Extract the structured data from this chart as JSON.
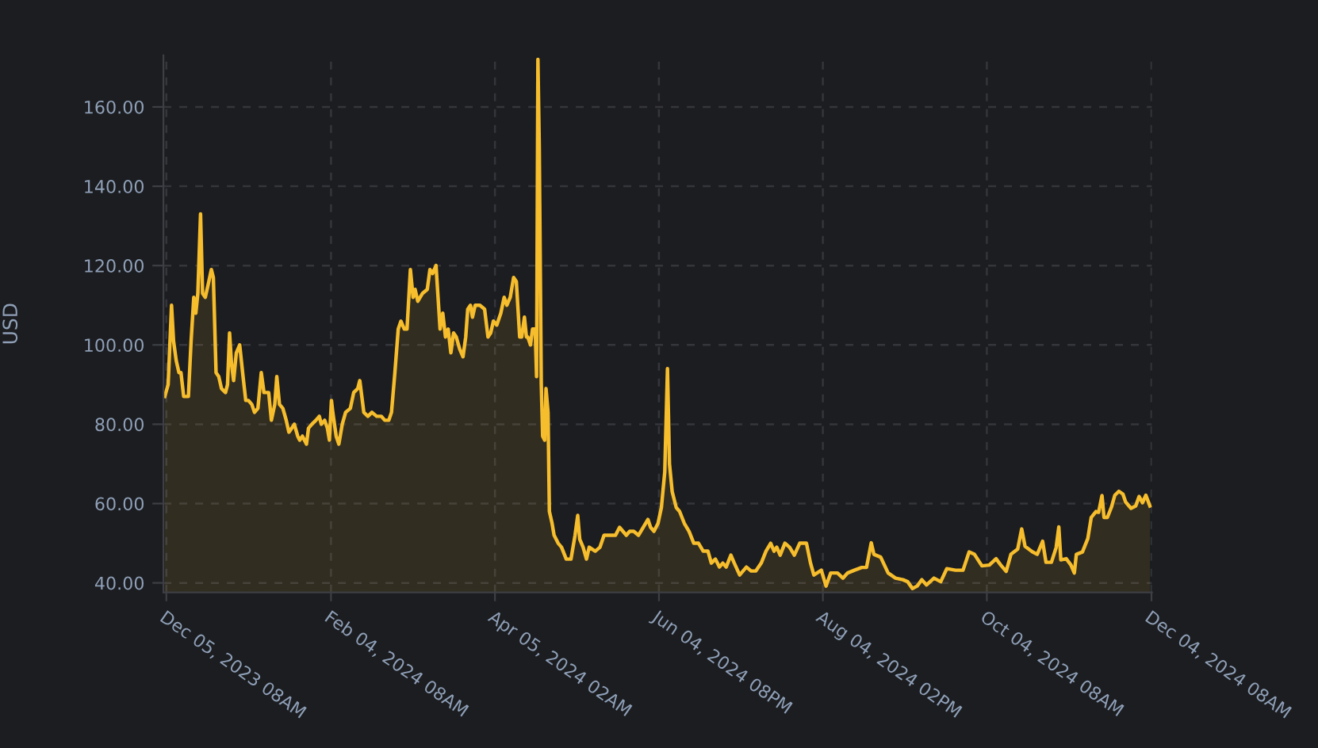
{
  "chart_data": {
    "type": "area",
    "ylabel": "USD",
    "x": [
      "2023-12-04T18:00",
      "2023-12-06T00:00",
      "2023-12-07T06:00",
      "2023-12-08T00:00",
      "2023-12-09T00:00",
      "2023-12-10T00:00",
      "2023-12-10T18:00",
      "2023-12-11T18:00",
      "2023-12-13T12:00",
      "2023-12-14T12:00",
      "2023-12-15T12:00",
      "2023-12-16T06:00",
      "2023-12-17T00:00",
      "2023-12-18T00:00",
      "2023-12-18T18:00",
      "2023-12-19T18:00",
      "2023-12-20T18:00",
      "2023-12-22T00:00",
      "2023-12-22T18:00",
      "2023-12-23T18:00",
      "2023-12-24T18:00",
      "2023-12-25T18:00",
      "2023-12-27T06:00",
      "2023-12-28T00:00",
      "2023-12-28T18:00",
      "2023-12-29T12:00",
      "2023-12-30T06:00",
      "2023-12-31T06:00",
      "2024-01-01T12:00",
      "2024-01-02T18:00",
      "2024-01-03T18:00",
      "2024-01-04T18:00",
      "2024-01-06T00:00",
      "2024-01-07T00:00",
      "2024-01-08T06:00",
      "2024-01-09T12:00",
      "2024-01-10T12:00",
      "2024-01-12T06:00",
      "2024-01-13T06:00",
      "2024-01-14T12:00",
      "2024-01-15T06:00",
      "2024-01-16T06:00",
      "2024-01-17T12:00",
      "2024-01-18T18:00",
      "2024-01-19T18:00",
      "2024-01-20T18:00",
      "2024-01-21T18:00",
      "2024-01-23T00:00",
      "2024-01-23T18:00",
      "2024-01-24T18:00",
      "2024-01-26T06:00",
      "2024-01-27T00:00",
      "2024-01-28T06:00",
      "2024-01-29T18:00",
      "2024-01-31T00:00",
      "2024-01-31T18:00",
      "2024-02-02T00:00",
      "2024-02-03T00:00",
      "2024-02-03T18:00",
      "2024-02-04T12:00",
      "2024-02-05T00:00",
      "2024-02-06T06:00",
      "2024-02-07T06:00",
      "2024-02-08T12:00",
      "2024-02-09T18:00",
      "2024-02-11T12:00",
      "2024-02-12T18:00",
      "2024-02-14T06:00",
      "2024-02-15T00:00",
      "2024-02-16T12:00",
      "2024-02-18T00:00",
      "2024-02-19T12:00",
      "2024-02-21T06:00",
      "2024-02-23T00:00",
      "2024-02-24T06:00",
      "2024-02-25T18:00",
      "2024-02-26T18:00",
      "2024-02-28T00:00",
      "2024-02-29T06:00",
      "2024-03-01T06:00",
      "2024-03-02T12:00",
      "2024-03-03T12:00",
      "2024-03-04T18:00",
      "2024-03-05T18:00",
      "2024-03-06T12:00",
      "2024-03-07T12:00",
      "2024-03-09T06:00",
      "2024-03-11T00:00",
      "2024-03-12T00:00",
      "2024-03-13T00:00",
      "2024-03-14T06:00",
      "2024-03-15T00:00",
      "2024-03-15T18:00",
      "2024-03-16T18:00",
      "2024-03-17T18:00",
      "2024-03-18T18:00",
      "2024-03-19T18:00",
      "2024-03-20T18:00",
      "2024-03-21T18:00",
      "2024-03-23T00:00",
      "2024-03-24T06:00",
      "2024-03-25T06:00",
      "2024-03-26T00:00",
      "2024-03-27T00:00",
      "2024-03-27T18:00",
      "2024-03-28T18:00",
      "2024-03-30T12:00",
      "2024-04-01T06:00",
      "2024-04-02T12:00",
      "2024-04-03T12:00",
      "2024-04-04T12:00",
      "2024-04-05T18:00",
      "2024-04-07T06:00",
      "2024-04-08T12:00",
      "2024-04-09T12:00",
      "2024-04-10T18:00",
      "2024-04-12T00:00",
      "2024-04-13T00:00",
      "2024-04-14T06:00",
      "2024-04-15T00:00",
      "2024-04-16T00:00",
      "2024-04-16T18:00",
      "2024-04-17T06:00",
      "2024-04-18T06:00",
      "2024-04-19T00:00",
      "2024-04-20T00:00",
      "2024-04-20T12:00",
      "2024-04-21T00:00",
      "2024-04-21T12:00",
      "2024-04-22T06:00",
      "2024-04-22T18:00",
      "2024-04-23T12:00",
      "2024-04-24T00:00",
      "2024-04-24T18:00",
      "2024-04-25T06:00",
      "2024-04-26T06:00",
      "2024-04-27T00:00",
      "2024-04-28T12:00",
      "2024-04-29T18:00",
      "2024-05-01T12:00",
      "2024-05-03T06:00",
      "2024-05-04T18:00",
      "2024-05-05T18:00",
      "2024-05-06T12:00",
      "2024-05-07T18:00",
      "2024-05-09T00:00",
      "2024-05-10T00:00",
      "2024-05-12T06:00",
      "2024-05-14T00:00",
      "2024-05-15T12:00",
      "2024-05-17T12:00",
      "2024-05-19T18:00",
      "2024-05-21T06:00",
      "2024-05-22T12:00",
      "2024-05-23T18:00",
      "2024-05-25T00:00",
      "2024-05-26T12:00",
      "2024-05-28T06:00",
      "2024-05-30T00:00",
      "2024-05-31T18:00",
      "2024-06-01T18:00",
      "2024-06-03T00:00",
      "2024-06-04T12:00",
      "2024-06-05T18:00",
      "2024-06-07T00:00",
      "2024-06-08T00:00",
      "2024-06-08T18:00",
      "2024-06-09T18:00",
      "2024-06-11T06:00",
      "2024-06-12T12:00",
      "2024-06-14T06:00",
      "2024-06-16T00:00",
      "2024-06-17T18:00",
      "2024-06-19T12:00",
      "2024-06-21T06:00",
      "2024-06-23T00:00",
      "2024-06-24T06:00",
      "2024-06-25T18:00",
      "2024-06-27T06:00",
      "2024-06-28T12:00",
      "2024-06-29T18:00",
      "2024-07-01T12:00",
      "2024-07-02T18:00",
      "2024-07-04T18:00",
      "2024-07-06T00:00",
      "2024-07-07T06:00",
      "2024-07-09T00:00",
      "2024-07-10T18:00",
      "2024-07-12T18:00",
      "2024-07-14T12:00",
      "2024-07-16T06:00",
      "2024-07-17T12:00",
      "2024-07-18T12:00",
      "2024-07-19T18:00",
      "2024-07-21T12:00",
      "2024-07-23T06:00",
      "2024-07-25T00:00",
      "2024-07-27T00:00",
      "2024-07-29T12:00",
      "2024-07-31T00:00",
      "2024-08-01T06:00",
      "2024-08-04T00:00",
      "2024-08-05T18:00",
      "2024-08-07T12:00",
      "2024-08-10T00:00",
      "2024-08-12T00:00",
      "2024-08-13T18:00",
      "2024-08-16T06:00",
      "2024-08-19T00:00",
      "2024-08-20T18:00",
      "2024-08-22T12:00",
      "2024-08-23T12:00",
      "2024-08-26T00:00",
      "2024-08-28T18:00",
      "2024-08-31T12:00",
      "2024-09-03T06:00",
      "2024-09-05T00:00",
      "2024-09-06T18:00",
      "2024-09-08T12:00",
      "2024-09-10T06:00",
      "2024-09-12T00:00",
      "2024-09-14T18:00",
      "2024-09-17T06:00",
      "2024-09-19T12:00",
      "2024-09-22T18:00",
      "2024-09-25T12:00",
      "2024-09-27T18:00",
      "2024-09-29T18:00",
      "2024-10-02T12:00",
      "2024-10-05T06:00",
      "2024-10-07T18:00",
      "2024-10-09T12:00",
      "2024-10-11T12:00",
      "2024-10-13T06:00",
      "2024-10-15T18:00",
      "2024-10-17T06:00",
      "2024-10-18T12:00",
      "2024-10-21T06:00",
      "2024-10-23T00:00",
      "2024-10-25T00:00",
      "2024-10-26T06:00",
      "2024-10-28T06:00",
      "2024-10-30T00:00",
      "2024-10-31T00:00",
      "2024-10-31T18:00",
      "2024-11-02T18:00",
      "2024-11-04T12:00",
      "2024-11-05T18:00",
      "2024-11-06T12:00",
      "2024-11-08T18:00",
      "2024-11-10T18:00",
      "2024-11-12T00:00",
      "2024-11-13T18:00",
      "2024-11-14T18:00",
      "2024-11-16T00:00",
      "2024-11-16T18:00",
      "2024-11-18T00:00",
      "2024-11-19T12:00",
      "2024-11-20T18:00",
      "2024-11-22T06:00",
      "2024-11-23T18:00",
      "2024-11-24T18:00",
      "2024-11-26T18:00",
      "2024-11-28T12:00",
      "2024-11-29T18:00",
      "2024-12-01T00:00",
      "2024-12-02T06:00",
      "2024-12-03T18:00"
    ],
    "series": [
      {
        "color": "#f6bd2d",
        "values": [
          87,
          90,
          110,
          101,
          96,
          93,
          93,
          87,
          87,
          101,
          112,
          108,
          113,
          133,
          113,
          112,
          115,
          119,
          117,
          93,
          92,
          89,
          88,
          90,
          103,
          95,
          91,
          98,
          100,
          92,
          86,
          86,
          85,
          83,
          84,
          93,
          88,
          88,
          81,
          85,
          92,
          85,
          84,
          81,
          78,
          79,
          80,
          77,
          76,
          77,
          75,
          79,
          80,
          81,
          82,
          80,
          81,
          79,
          76,
          86,
          83,
          77,
          75,
          80,
          83,
          84,
          88,
          89,
          91,
          83,
          82,
          83,
          82,
          82,
          81,
          81,
          83,
          93,
          104,
          106,
          104,
          104,
          119,
          112,
          114,
          111,
          113,
          114,
          119,
          118,
          120,
          112,
          104,
          108,
          102,
          104,
          98,
          103,
          102,
          99,
          97,
          102,
          109,
          110,
          107,
          110,
          110,
          109,
          102,
          103,
          106,
          105,
          108,
          112,
          110,
          112,
          117,
          116,
          102,
          102,
          107,
          102,
          102,
          100,
          104,
          104,
          92,
          172,
          150,
          90,
          77,
          76,
          89,
          83,
          58,
          55,
          52,
          50,
          49,
          46,
          46,
          52,
          57,
          51,
          49,
          46,
          49,
          48,
          49,
          52,
          52,
          52,
          54,
          53,
          52,
          53,
          53,
          52,
          54,
          56,
          54,
          53,
          55,
          59,
          68,
          94,
          70,
          63,
          59,
          58,
          55,
          53,
          50,
          50,
          48,
          48,
          45,
          46,
          44,
          45,
          44,
          47,
          45,
          42,
          43,
          44,
          43,
          43,
          45,
          48,
          50,
          48,
          49,
          47,
          50,
          49,
          47,
          50,
          50,
          45,
          42,
          43.2,
          39.2,
          42.5,
          42.5,
          41.2,
          42.5,
          43.2,
          43.9,
          43.9,
          50.1,
          47.2,
          46.5,
          42.5,
          41.2,
          40.8,
          40.3,
          38.6,
          39.2,
          40.8,
          39.5,
          41.2,
          40.3,
          43.6,
          43.2,
          43.2,
          47.8,
          47.2,
          44.3,
          44.5,
          46.1,
          44.5,
          42.9,
          47.2,
          48.5,
          53.6,
          49.2,
          47.8,
          47.2,
          50.5,
          45.2,
          45.2,
          48.9,
          54.1,
          45.8,
          46.1,
          44.5,
          42.5,
          47.2,
          47.8,
          51.2,
          56.5,
          58,
          57.8,
          62,
          56.5,
          56.5,
          59.1,
          62.1,
          63.1,
          62.4,
          60.4,
          58.8,
          59.4,
          61.8,
          60.2,
          62.1,
          59.4
        ]
      }
    ],
    "xlim": [
      "2023-12-04T06:00",
      "2024-12-04T12:00"
    ],
    "xticks": [
      {
        "value": "2023-12-05T08:00",
        "label": "Dec 05, 2023 08AM"
      },
      {
        "value": "2024-02-04T08:00",
        "label": "Feb 04, 2024 08AM"
      },
      {
        "value": "2024-04-05T02:00",
        "label": "Apr 05, 2024 02AM"
      },
      {
        "value": "2024-06-04T20:00",
        "label": "Jun 04, 2024 08PM"
      },
      {
        "value": "2024-08-04T14:00",
        "label": "Aug 04, 2024 02PM"
      },
      {
        "value": "2024-10-04T08:00",
        "label": "Oct 04, 2024 08AM"
      },
      {
        "value": "2024-12-04T08:00",
        "label": "Dec 04, 2024 08AM"
      }
    ],
    "ylim": [
      37.6,
      173
    ],
    "yticks": [
      {
        "value": 40,
        "label": "40.00"
      },
      {
        "value": 60,
        "label": "60.00"
      },
      {
        "value": 80,
        "label": "80.00"
      },
      {
        "value": 100,
        "label": "100.00"
      },
      {
        "value": 120,
        "label": "120.00"
      },
      {
        "value": 140,
        "label": "140.00"
      },
      {
        "value": 160,
        "label": "160.00"
      }
    ],
    "grid": true,
    "line_style": "solid",
    "marker": "none"
  }
}
